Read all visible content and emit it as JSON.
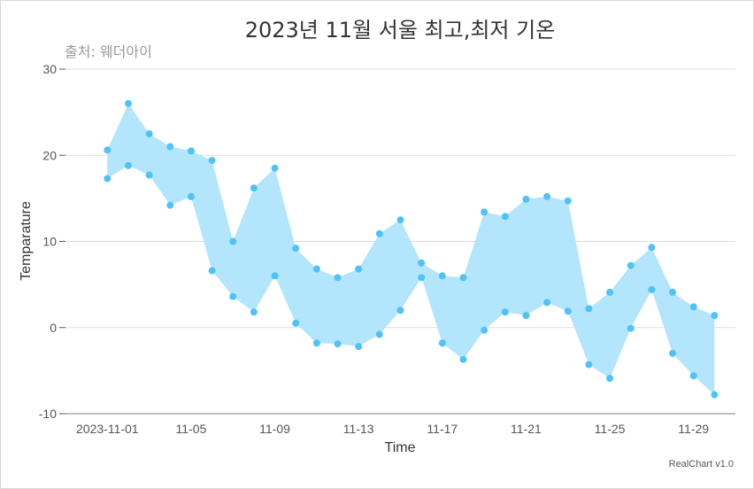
{
  "chart_data": {
    "type": "area",
    "title": "2023년 11월 서울 최고,최저 기온",
    "subtitle": "출처: 웨더아이",
    "xlabel": "Time",
    "ylabel": "Temparature",
    "ylim": [
      -10,
      30
    ],
    "yticks": [
      -10,
      0,
      10,
      20,
      30
    ],
    "xlim": [
      "2023-10-30",
      "2023-12-01"
    ],
    "xticks": [
      "2023-11-01",
      "2023-11-05",
      "2023-11-09",
      "2023-11-13",
      "2023-11-17",
      "2023-11-21",
      "2023-11-25",
      "2023-11-29"
    ],
    "xtick_labels": [
      "2023-11-01",
      "11-05",
      "11-09",
      "11-13",
      "11-17",
      "11-21",
      "11-25",
      "11-29"
    ],
    "grid": true,
    "fill_color": "#b3e5fc",
    "marker_color": "#4fc3f7",
    "x": [
      "2023-11-01",
      "2023-11-02",
      "2023-11-03",
      "2023-11-04",
      "2023-11-05",
      "2023-11-06",
      "2023-11-07",
      "2023-11-08",
      "2023-11-09",
      "2023-11-10",
      "2023-11-11",
      "2023-11-12",
      "2023-11-13",
      "2023-11-14",
      "2023-11-15",
      "2023-11-16",
      "2023-11-17",
      "2023-11-18",
      "2023-11-19",
      "2023-11-20",
      "2023-11-21",
      "2023-11-22",
      "2023-11-23",
      "2023-11-24",
      "2023-11-25",
      "2023-11-26",
      "2023-11-27",
      "2023-11-28",
      "2023-11-29",
      "2023-11-30"
    ],
    "series": [
      {
        "values": [
          20.6,
          26.0,
          22.5,
          21.0,
          20.5,
          19.4,
          10.0,
          16.2,
          18.5,
          9.2,
          6.8,
          5.8,
          6.8,
          10.9,
          12.5,
          7.5,
          6.0,
          5.8,
          13.4,
          12.9,
          14.9,
          15.2,
          14.7,
          2.2,
          4.1,
          7.2,
          9.3,
          4.1,
          2.4,
          1.4
        ]
      },
      {
        "values": [
          17.3,
          18.8,
          17.7,
          14.2,
          15.2,
          6.6,
          3.6,
          1.8,
          6.0,
          0.5,
          -1.8,
          -1.9,
          -2.2,
          -0.8,
          2.0,
          5.8,
          -1.8,
          -3.7,
          -0.3,
          1.8,
          1.4,
          2.9,
          1.9,
          -4.3,
          -5.9,
          -0.1,
          4.4,
          -3.0,
          -5.6,
          -7.8
        ]
      }
    ]
  },
  "credit": "RealChart v1.0"
}
